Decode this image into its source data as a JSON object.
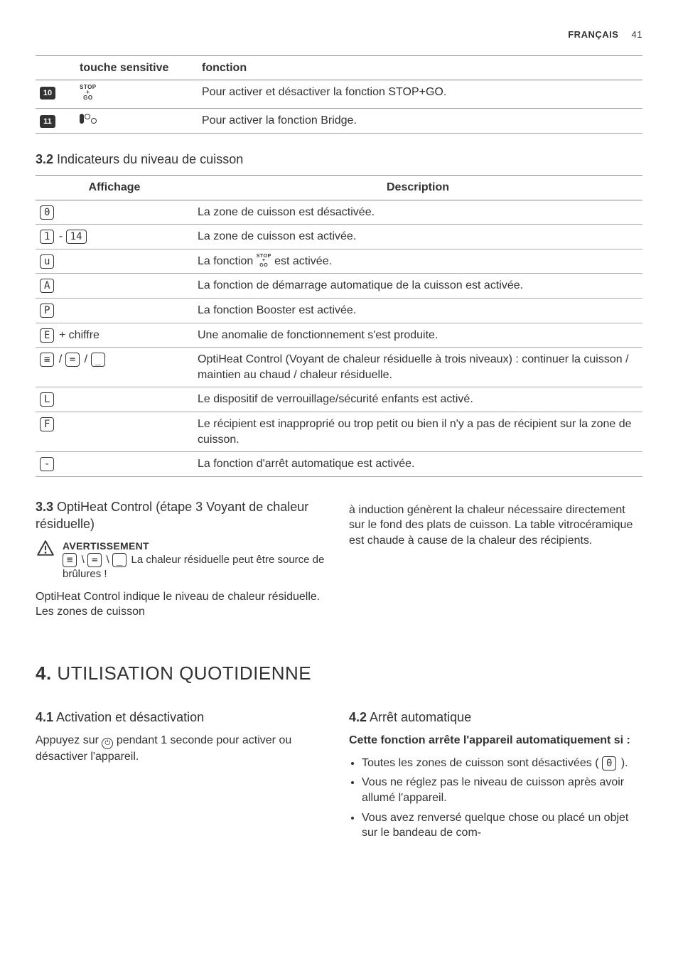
{
  "header": {
    "lang": "FRANÇAIS",
    "page": "41"
  },
  "keytable": {
    "head_touch": "touche sensitive",
    "head_func": "fonction",
    "rows": [
      {
        "num": "10",
        "icon": "stopgo",
        "func": "Pour activer et désactiver la fonction STOP+GO."
      },
      {
        "num": "11",
        "icon": "bridge",
        "func": "Pour activer la fonction Bridge."
      }
    ]
  },
  "sec32": {
    "num": "3.2",
    "title": "Indicateurs du niveau de cuisson",
    "head_affichage": "Affichage",
    "head_desc": "Description",
    "rows": [
      {
        "disp": [
          {
            "t": "seg",
            "v": "0"
          }
        ],
        "desc": "La zone de cuisson est désactivée."
      },
      {
        "disp": [
          {
            "t": "seg",
            "v": "1"
          },
          {
            "t": "text",
            "v": " - "
          },
          {
            "t": "seg",
            "v": "14"
          }
        ],
        "desc": "La zone de cuisson est activée."
      },
      {
        "disp": [
          {
            "t": "seg",
            "v": "u"
          }
        ],
        "desc_pre": "La fonction ",
        "desc_mid_icon": "stopgo",
        "desc_post": " est activée."
      },
      {
        "disp": [
          {
            "t": "seg",
            "v": "A"
          }
        ],
        "desc": "La fonction de démarrage automatique de la cuisson est activée."
      },
      {
        "disp": [
          {
            "t": "seg",
            "v": "P"
          }
        ],
        "desc": "La fonction Booster est activée."
      },
      {
        "disp": [
          {
            "t": "seg",
            "v": "E"
          },
          {
            "t": "text",
            "v": " + chiffre"
          }
        ],
        "desc": "Une anomalie de fonctionnement s'est produite."
      },
      {
        "disp": [
          {
            "t": "seg",
            "v": "≡"
          },
          {
            "t": "text",
            "v": " / "
          },
          {
            "t": "seg",
            "v": "="
          },
          {
            "t": "text",
            "v": " / "
          },
          {
            "t": "seg",
            "v": "_"
          }
        ],
        "desc": "OptiHeat Control (Voyant de chaleur résiduelle à trois niveaux) : continuer la cuisson / maintien au chaud / chaleur résiduelle."
      },
      {
        "disp": [
          {
            "t": "seg",
            "v": "L"
          }
        ],
        "desc": "Le dispositif de verrouillage/sécurité enfants est activé."
      },
      {
        "disp": [
          {
            "t": "seg",
            "v": "F"
          }
        ],
        "desc": "Le récipient est inapproprié ou trop petit ou bien il n'y a pas de récipient sur la zone de cuisson."
      },
      {
        "disp": [
          {
            "t": "seg",
            "v": "-"
          }
        ],
        "desc": "La fonction d'arrêt automatique est activée."
      }
    ]
  },
  "sec33": {
    "num": "3.3",
    "title": "OptiHeat Control (étape 3 Voyant de chaleur résiduelle)",
    "warn_title": "AVERTISSEMENT",
    "warn_body": " La chaleur résiduelle peut être source de brûlures !",
    "p_left": "OptiHeat Control indique le niveau de chaleur résiduelle. Les zones de cuisson",
    "p_right": "à induction génèrent la chaleur nécessaire directement sur le fond des plats de cuisson. La table vitrocéramique est chaude à cause de la chaleur des récipients."
  },
  "sec4": {
    "num": "4.",
    "title": "UTILISATION QUOTIDIENNE"
  },
  "sec41": {
    "num": "4.1",
    "title": "Activation et désactivation",
    "body_pre": "Appuyez sur ",
    "body_post": " pendant 1 seconde pour activer ou désactiver l'appareil."
  },
  "sec42": {
    "num": "4.2",
    "title": "Arrêt automatique",
    "intro": "Cette fonction arrête l'appareil automatiquement si :",
    "bullets": [
      {
        "pre": "Toutes les zones de cuisson sont désactivées ( ",
        "seg": "0",
        "post": " )."
      },
      {
        "text": "Vous ne réglez pas le niveau de cuisson après avoir allumé l'appareil."
      },
      {
        "text": "Vous avez renversé quelque chose ou placé un objet sur le bandeau de com-"
      }
    ]
  }
}
